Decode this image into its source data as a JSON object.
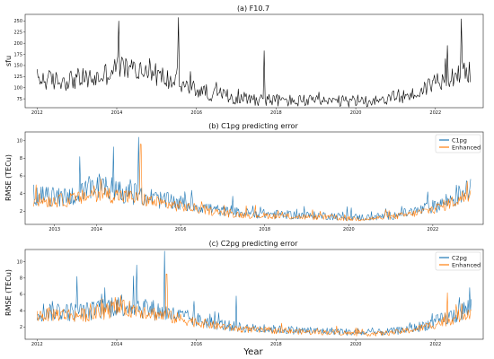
{
  "xlabel": "Year",
  "colors": {
    "f107": "#000000",
    "model": "#1f77b4",
    "enhanced": "#ff7f0e"
  },
  "chart_data": [
    {
      "type": "line",
      "title": "(a) F10.7",
      "ylabel": "sfu",
      "xlabel": "",
      "xlim": [
        2011.7,
        2023.2
      ],
      "ylim": [
        55,
        265
      ],
      "xticks": [
        "2012",
        "2014",
        "2016",
        "2018",
        "2020",
        "2022"
      ],
      "yticks": [
        "75",
        "100",
        "125",
        "150",
        "175",
        "200",
        "225",
        "250"
      ],
      "grid": false,
      "legend": "none",
      "anchors": {
        "x": [
          2012.0,
          2012.5,
          2013.0,
          2013.5,
          2014.0,
          2014.5,
          2015.0,
          2015.5,
          2016.0,
          2016.5,
          2017.0,
          2017.5,
          2018.0,
          2018.5,
          2019.0,
          2019.5,
          2020.0,
          2020.5,
          2021.0,
          2021.5,
          2022.0,
          2022.5,
          2022.9
        ],
        "y": [
          120,
          115,
          120,
          120,
          145,
          140,
          130,
          110,
          95,
          85,
          78,
          75,
          72,
          70,
          70,
          68,
          70,
          72,
          78,
          85,
          115,
          130,
          140
        ]
      },
      "series": [
        {
          "name": "",
          "spikes": [
            {
              "x": 2014.05,
              "y": 250
            },
            {
              "x": 2015.55,
              "y": 258
            },
            {
              "x": 2017.7,
              "y": 183
            },
            {
              "x": 2022.3,
              "y": 195
            },
            {
              "x": 2022.65,
              "y": 255
            }
          ]
        }
      ]
    },
    {
      "type": "line",
      "title": "(b) C1pg predicting error",
      "ylabel": "RMSE (TECu)",
      "xlabel": "",
      "xlim": [
        2012.3,
        2023.2
      ],
      "ylim": [
        0.5,
        11
      ],
      "xticks": [
        "2013",
        "2014",
        "2016",
        "2018",
        "2020",
        "2022"
      ],
      "yticks": [
        "2",
        "4",
        "6",
        "8",
        "10"
      ],
      "grid": false,
      "legend": "top-right",
      "anchors": {
        "x": [
          2012.5,
          2013.0,
          2013.5,
          2014.0,
          2014.5,
          2015.0,
          2015.5,
          2016.0,
          2016.5,
          2017.0,
          2017.5,
          2018.0,
          2018.5,
          2019.0,
          2019.5,
          2020.0,
          2020.5,
          2021.0,
          2021.5,
          2022.0,
          2022.5,
          2022.9
        ],
        "y": [
          3.8,
          3.6,
          3.8,
          4.6,
          4.3,
          3.9,
          3.3,
          2.9,
          2.5,
          2.0,
          1.8,
          1.7,
          1.6,
          1.5,
          1.5,
          1.3,
          1.3,
          1.5,
          1.9,
          2.5,
          3.5,
          4.5
        ]
      },
      "series": [
        {
          "name": "C1pg",
          "spikes": [
            {
              "x": 2015.0,
              "y": 10.4
            },
            {
              "x": 2014.4,
              "y": 9.3
            },
            {
              "x": 2013.6,
              "y": 8.2
            }
          ]
        },
        {
          "name": "Enhanced",
          "spikes": [
            {
              "x": 2015.05,
              "y": 9.6
            }
          ]
        }
      ]
    },
    {
      "type": "line",
      "title": "(c) C2pg predicting error",
      "ylabel": "RMSE (TECu)",
      "xlabel": "Year",
      "xlim": [
        2011.7,
        2023.2
      ],
      "ylim": [
        0.5,
        11.5
      ],
      "xticks": [
        "2012",
        "2014",
        "2016",
        "2018",
        "2020",
        "2022"
      ],
      "yticks": [
        "2",
        "4",
        "6",
        "8",
        "10"
      ],
      "grid": false,
      "legend": "top-right",
      "anchors": {
        "x": [
          2012.0,
          2012.5,
          2013.0,
          2013.5,
          2014.0,
          2014.5,
          2015.0,
          2015.5,
          2016.0,
          2016.5,
          2017.0,
          2017.5,
          2018.0,
          2018.5,
          2019.0,
          2019.5,
          2020.0,
          2020.5,
          2021.0,
          2021.5,
          2022.0,
          2022.5,
          2022.9
        ],
        "y": [
          3.8,
          4.0,
          3.8,
          4.0,
          4.8,
          4.6,
          4.0,
          3.4,
          2.9,
          2.4,
          2.0,
          1.8,
          1.7,
          1.6,
          1.5,
          1.5,
          1.3,
          1.3,
          1.5,
          1.9,
          2.6,
          3.5,
          4.5
        ]
      },
      "series": [
        {
          "name": "C2pg",
          "spikes": [
            {
              "x": 2015.2,
              "y": 11.3
            },
            {
              "x": 2014.5,
              "y": 9.6
            },
            {
              "x": 2013.0,
              "y": 8.2
            },
            {
              "x": 2017.0,
              "y": 5.8
            }
          ]
        },
        {
          "name": "Enhanced",
          "spikes": [
            {
              "x": 2015.25,
              "y": 8.5
            },
            {
              "x": 2022.3,
              "y": 6.2
            }
          ]
        }
      ]
    }
  ]
}
